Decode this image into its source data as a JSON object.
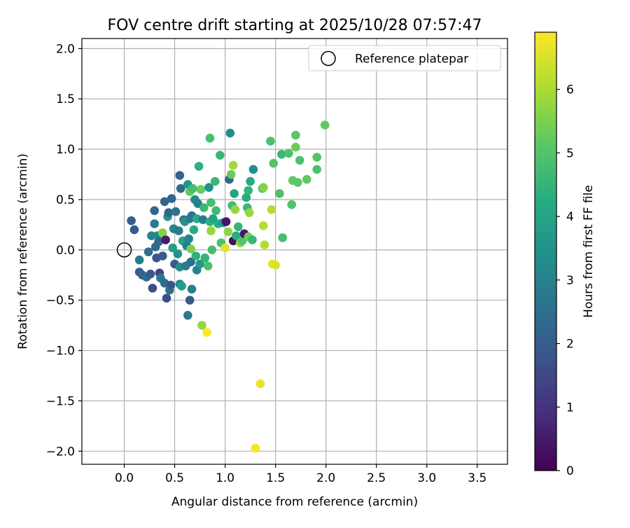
{
  "chart_data": {
    "type": "scatter",
    "title": "FOV centre drift starting at 2025/10/28 07:57:47",
    "xlabel": "Angular distance from reference (arcmin)",
    "ylabel": "Rotation from reference (arcmin)",
    "xlim": [
      -0.42,
      3.8
    ],
    "ylim": [
      -2.13,
      2.1
    ],
    "x_ticks": [
      0.0,
      0.5,
      1.0,
      1.5,
      2.0,
      2.5,
      3.0,
      3.5
    ],
    "x_tick_labels": [
      "0.0",
      "0.5",
      "1.0",
      "1.5",
      "2.0",
      "2.5",
      "3.0",
      "3.5"
    ],
    "y_ticks": [
      2.0,
      1.5,
      1.0,
      0.5,
      0.0,
      -0.5,
      -1.0,
      -1.5,
      -2.0
    ],
    "y_tick_labels": [
      "2.0",
      "1.5",
      "1.0",
      "0.5",
      "0.0",
      "−0.5",
      "−1.0",
      "−1.5",
      "−2.0"
    ],
    "grid": true,
    "legend": {
      "position": "top-right",
      "label": "Reference platepar"
    },
    "reference_point": {
      "x": 0.0,
      "y": 0.0
    },
    "colorbar": {
      "label": "Hours from first FF file",
      "range": [
        0,
        6.9
      ],
      "ticks": [
        0,
        1,
        2,
        3,
        4,
        5,
        6
      ],
      "tick_labels": [
        "0",
        "1",
        "2",
        "3",
        "4",
        "5",
        "6"
      ],
      "colormap": [
        "#440154",
        "#472d7b",
        "#3b528b",
        "#2c728e",
        "#21918c",
        "#28ae80",
        "#5ec962",
        "#addc30",
        "#fde725"
      ]
    },
    "points": [
      [
        0.07,
        0.29,
        2.1
      ],
      [
        0.1,
        0.2,
        2.0
      ],
      [
        0.15,
        -0.1,
        2.8
      ],
      [
        0.15,
        -0.22,
        2.1
      ],
      [
        0.18,
        -0.25,
        2.2
      ],
      [
        0.22,
        -0.27,
        2.4
      ],
      [
        0.24,
        -0.02,
        2.5
      ],
      [
        0.26,
        -0.24,
        1.9
      ],
      [
        0.27,
        0.14,
        3.1
      ],
      [
        0.28,
        -0.38,
        1.6
      ],
      [
        0.3,
        0.39,
        2.3
      ],
      [
        0.3,
        0.26,
        2.9
      ],
      [
        0.31,
        0.03,
        2.3
      ],
      [
        0.32,
        -0.08,
        1.8
      ],
      [
        0.33,
        0.14,
        3.3
      ],
      [
        0.34,
        0.08,
        2.4
      ],
      [
        0.35,
        -0.23,
        1.4
      ],
      [
        0.36,
        -0.28,
        2.8
      ],
      [
        0.38,
        0.17,
        5.6
      ],
      [
        0.38,
        -0.06,
        2.0
      ],
      [
        0.4,
        0.48,
        2.2
      ],
      [
        0.4,
        -0.33,
        2.4
      ],
      [
        0.41,
        0.1,
        0.5
      ],
      [
        0.42,
        -0.48,
        1.6
      ],
      [
        0.43,
        0.33,
        3.8
      ],
      [
        0.44,
        0.37,
        2.3
      ],
      [
        0.45,
        -0.4,
        2.7
      ],
      [
        0.46,
        -0.35,
        1.9
      ],
      [
        0.47,
        0.51,
        2.2
      ],
      [
        0.48,
        0.02,
        3.8
      ],
      [
        0.49,
        0.21,
        3.1
      ],
      [
        0.5,
        -0.14,
        2.0
      ],
      [
        0.51,
        0.38,
        2.6
      ],
      [
        0.53,
        -0.04,
        3.5
      ],
      [
        0.54,
        0.19,
        2.9
      ],
      [
        0.55,
        0.74,
        2.2
      ],
      [
        0.55,
        -0.34,
        3.2
      ],
      [
        0.55,
        -0.17,
        3.4
      ],
      [
        0.56,
        0.61,
        2.4
      ],
      [
        0.57,
        -0.36,
        3.9
      ],
      [
        0.58,
        0.09,
        4.0
      ],
      [
        0.59,
        0.3,
        2.6
      ],
      [
        0.6,
        0.28,
        3.5
      ],
      [
        0.61,
        -0.16,
        2.8
      ],
      [
        0.62,
        0.04,
        2.8
      ],
      [
        0.63,
        0.65,
        3.6
      ],
      [
        0.63,
        -0.65,
        2.8
      ],
      [
        0.64,
        0.11,
        3.1
      ],
      [
        0.65,
        0.58,
        5.2
      ],
      [
        0.65,
        0.31,
        2.8
      ],
      [
        0.65,
        -0.5,
        2.0
      ],
      [
        0.66,
        0.01,
        5.5
      ],
      [
        0.66,
        -0.12,
        2.5
      ],
      [
        0.67,
        0.34,
        2.7
      ],
      [
        0.67,
        -0.39,
        3.0
      ],
      [
        0.68,
        0.61,
        4.8
      ],
      [
        0.69,
        0.2,
        4.3
      ],
      [
        0.7,
        0.5,
        3.3
      ],
      [
        0.71,
        -0.06,
        4.4
      ],
      [
        0.72,
        -0.2,
        3.1
      ],
      [
        0.72,
        0.31,
        4.2
      ],
      [
        0.73,
        0.46,
        3.0
      ],
      [
        0.74,
        0.83,
        4.4
      ],
      [
        0.75,
        -0.14,
        3.7
      ],
      [
        0.76,
        0.6,
        5.3
      ],
      [
        0.77,
        -0.75,
        5.8
      ],
      [
        0.78,
        0.3,
        2.9
      ],
      [
        0.79,
        0.42,
        4.6
      ],
      [
        0.8,
        -0.08,
        4.5
      ],
      [
        0.82,
        -0.82,
        6.9
      ],
      [
        0.83,
        -0.16,
        4.9
      ],
      [
        0.84,
        0.62,
        3.5
      ],
      [
        0.85,
        1.11,
        4.8
      ],
      [
        0.85,
        0.28,
        4.4
      ],
      [
        0.86,
        0.47,
        4.8
      ],
      [
        0.86,
        0.19,
        5.8
      ],
      [
        0.87,
        0.0,
        4.8
      ],
      [
        0.88,
        0.31,
        4.0
      ],
      [
        0.9,
        0.68,
        4.6
      ],
      [
        0.91,
        0.39,
        4.7
      ],
      [
        0.93,
        0.26,
        4.3
      ],
      [
        0.95,
        0.94,
        4.6
      ],
      [
        0.96,
        0.07,
        4.9
      ],
      [
        0.98,
        0.27,
        3.6
      ],
      [
        1.0,
        0.02,
        6.6
      ],
      [
        1.01,
        0.28,
        0.4
      ],
      [
        1.03,
        0.18,
        5.7
      ],
      [
        1.04,
        0.7,
        2.4
      ],
      [
        1.05,
        1.16,
        3.4
      ],
      [
        1.06,
        0.75,
        5.3
      ],
      [
        1.07,
        0.44,
        4.7
      ],
      [
        1.08,
        0.84,
        5.9
      ],
      [
        1.08,
        0.09,
        0.3
      ],
      [
        1.09,
        0.56,
        4.0
      ],
      [
        1.1,
        0.4,
        5.8
      ],
      [
        1.11,
        0.14,
        4.3
      ],
      [
        1.13,
        0.23,
        4.5
      ],
      [
        1.15,
        0.07,
        5.8
      ],
      [
        1.17,
        0.09,
        5.0
      ],
      [
        1.19,
        0.16,
        0.4
      ],
      [
        1.21,
        0.52,
        4.2
      ],
      [
        1.22,
        0.42,
        4.6
      ],
      [
        1.23,
        0.13,
        5.3
      ],
      [
        1.23,
        0.59,
        4.5
      ],
      [
        1.24,
        0.37,
        5.8
      ],
      [
        1.25,
        0.68,
        4.2
      ],
      [
        1.27,
        0.1,
        4.6
      ],
      [
        1.28,
        0.8,
        3.4
      ],
      [
        1.3,
        -1.97,
        6.8
      ],
      [
        1.35,
        -1.33,
        6.7
      ],
      [
        1.37,
        0.61,
        4.9
      ],
      [
        1.38,
        0.62,
        5.6
      ],
      [
        1.38,
        0.24,
        6.1
      ],
      [
        1.39,
        0.05,
        6.1
      ],
      [
        1.45,
        1.08,
        4.9
      ],
      [
        1.46,
        0.4,
        6.1
      ],
      [
        1.47,
        -0.14,
        6.6
      ],
      [
        1.48,
        0.86,
        5.0
      ],
      [
        1.5,
        -0.15,
        6.5
      ],
      [
        1.54,
        0.56,
        4.9
      ],
      [
        1.56,
        0.95,
        4.6
      ],
      [
        1.57,
        0.12,
        4.8
      ],
      [
        1.63,
        0.96,
        4.9
      ],
      [
        1.66,
        0.45,
        5.0
      ],
      [
        1.67,
        0.69,
        5.2
      ],
      [
        1.7,
        1.14,
        5.1
      ],
      [
        1.7,
        1.02,
        5.3
      ],
      [
        1.72,
        0.67,
        5.1
      ],
      [
        1.74,
        0.89,
        4.9
      ],
      [
        1.81,
        0.7,
        5.2
      ],
      [
        1.91,
        0.92,
        5.0
      ],
      [
        1.91,
        0.8,
        4.9
      ],
      [
        1.99,
        1.24,
        5.2
      ]
    ]
  }
}
